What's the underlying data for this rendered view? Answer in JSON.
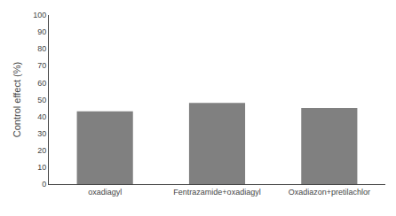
{
  "chart_data": {
    "type": "bar",
    "categories": [
      "oxadiagyl",
      "Fentrazamide+oxadiagyl",
      "Oxadiazon+pretilachlor"
    ],
    "values": [
      43,
      48,
      45
    ],
    "color": "#808080",
    "ylabel": "Control effect (%)",
    "ylim": [
      0,
      100
    ],
    "yticks": [
      0,
      10,
      20,
      30,
      40,
      50,
      60,
      70,
      80,
      90,
      100
    ],
    "grid": false
  }
}
